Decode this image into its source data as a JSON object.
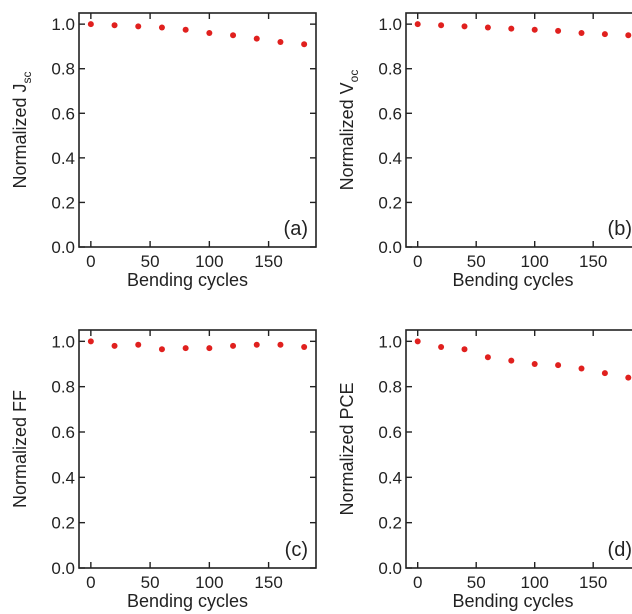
{
  "chart_data": [
    {
      "type": "scatter",
      "panel_label": "(a)",
      "xlabel": "Bending cycles",
      "ylabel": {
        "base": "Normalized J",
        "sub": "sc"
      },
      "x": [
        0,
        20,
        40,
        60,
        80,
        100,
        120,
        140,
        160,
        180
      ],
      "y": [
        1.0,
        0.995,
        0.99,
        0.985,
        0.975,
        0.96,
        0.95,
        0.935,
        0.92,
        0.91
      ],
      "xlim": [
        -10,
        190
      ],
      "ylim": [
        0,
        1.05
      ],
      "xticks": [
        "0",
        "50",
        "100",
        "150"
      ],
      "xtick_values": [
        0,
        50,
        100,
        150
      ],
      "yticks": [
        "0.0",
        "0.2",
        "0.4",
        "0.6",
        "0.8",
        "1.0"
      ],
      "ytick_values": [
        0,
        0.2,
        0.4,
        0.6,
        0.8,
        1.0
      ],
      "marker_color": "#e0201e",
      "grid": false
    },
    {
      "type": "scatter",
      "panel_label": "(b)",
      "xlabel": "Bending cycles",
      "ylabel": {
        "base": "Normalized V",
        "sub": "oc"
      },
      "x": [
        0,
        20,
        40,
        60,
        80,
        100,
        120,
        140,
        160,
        180
      ],
      "y": [
        1.0,
        0.995,
        0.99,
        0.985,
        0.98,
        0.975,
        0.97,
        0.96,
        0.955,
        0.95
      ],
      "xlim": [
        -10,
        190
      ],
      "ylim": [
        0,
        1.05
      ],
      "xticks": [
        "0",
        "50",
        "100",
        "150"
      ],
      "xtick_values": [
        0,
        50,
        100,
        150
      ],
      "yticks": [
        "0.0",
        "0.2",
        "0.4",
        "0.6",
        "0.8",
        "1.0"
      ],
      "ytick_values": [
        0,
        0.2,
        0.4,
        0.6,
        0.8,
        1.0
      ],
      "marker_color": "#e0201e",
      "grid": false
    },
    {
      "type": "scatter",
      "panel_label": "(c)",
      "xlabel": "Bending cycles",
      "ylabel": {
        "base": "Normalized FF",
        "sub": ""
      },
      "x": [
        0,
        20,
        40,
        60,
        80,
        100,
        120,
        140,
        160,
        180
      ],
      "y": [
        1.0,
        0.98,
        0.985,
        0.965,
        0.97,
        0.97,
        0.98,
        0.985,
        0.985,
        0.975
      ],
      "xlim": [
        -10,
        190
      ],
      "ylim": [
        0,
        1.05
      ],
      "xticks": [
        "0",
        "50",
        "100",
        "150"
      ],
      "xtick_values": [
        0,
        50,
        100,
        150
      ],
      "yticks": [
        "0.0",
        "0.2",
        "0.4",
        "0.6",
        "0.8",
        "1.0"
      ],
      "ytick_values": [
        0,
        0.2,
        0.4,
        0.6,
        0.8,
        1.0
      ],
      "marker_color": "#e0201e",
      "grid": false
    },
    {
      "type": "scatter",
      "panel_label": "(d)",
      "xlabel": "Bending cycles",
      "ylabel": {
        "base": "Normalized PCE",
        "sub": ""
      },
      "x": [
        0,
        20,
        40,
        60,
        80,
        100,
        120,
        140,
        160,
        180
      ],
      "y": [
        1.0,
        0.975,
        0.965,
        0.93,
        0.915,
        0.9,
        0.895,
        0.88,
        0.86,
        0.84
      ],
      "xlim": [
        -10,
        190
      ],
      "ylim": [
        0,
        1.05
      ],
      "xticks": [
        "0",
        "50",
        "100",
        "150"
      ],
      "xtick_values": [
        0,
        50,
        100,
        150
      ],
      "yticks": [
        "0.0",
        "0.2",
        "0.4",
        "0.6",
        "0.8",
        "1.0"
      ],
      "ytick_values": [
        0,
        0.2,
        0.4,
        0.6,
        0.8,
        1.0
      ],
      "marker_color": "#e0201e",
      "grid": false
    }
  ]
}
